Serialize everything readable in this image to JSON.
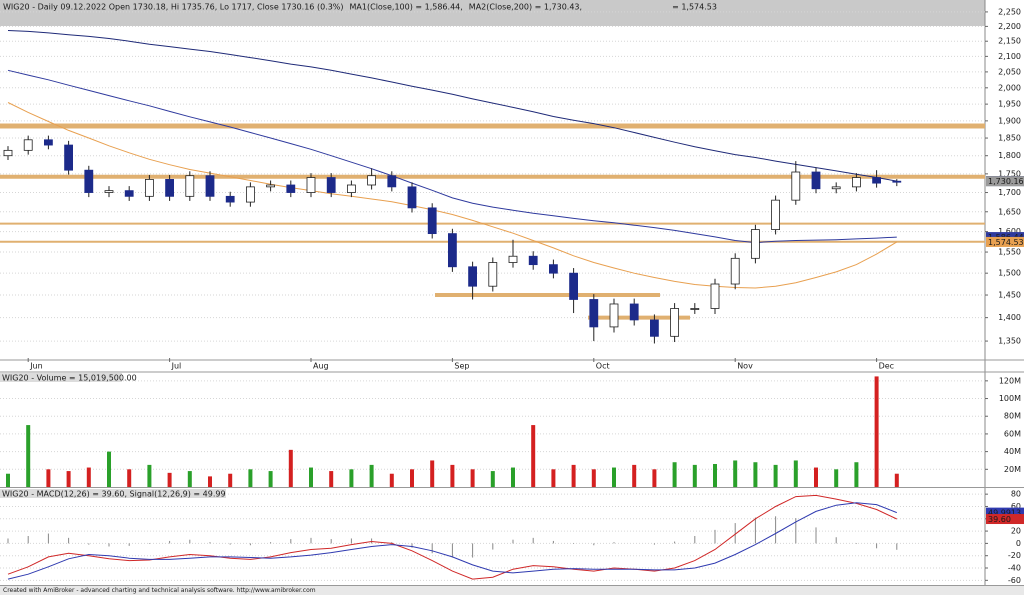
{
  "chart_data": [
    {
      "type": "candlestick",
      "title": "WIG20 - Daily 09.12.2022 Open 1730.18, Hi 1735.76, Lo 1717, Close 1730.16 (0.3%)",
      "log_scale": true,
      "categories": [
        null,
        "Jun",
        null,
        null,
        null,
        null,
        null,
        null,
        "Jul",
        null,
        null,
        null,
        null,
        null,
        null,
        "Aug",
        null,
        null,
        null,
        null,
        null,
        null,
        "Sep",
        null,
        null,
        null,
        null,
        null,
        null,
        "Oct",
        null,
        null,
        null,
        null,
        null,
        null,
        "Nov",
        null,
        null,
        null,
        null,
        null,
        null,
        "Dec",
        null
      ],
      "open": [
        1800,
        1815,
        1845,
        1830,
        1760,
        1700,
        1705,
        1690,
        1735,
        1690,
        1745,
        1690,
        1675,
        1715,
        1720,
        1700,
        1740,
        1700,
        1720,
        1745,
        1715,
        1660,
        1595,
        1515,
        1470,
        1525,
        1540,
        1520,
        1500,
        1440,
        1380,
        1430,
        1395,
        1360,
        1420,
        1420,
        1475,
        1535,
        1605,
        1680,
        1755,
        1710,
        1715,
        1740,
        1730.18
      ],
      "high": [
        1827,
        1857,
        1857,
        1842,
        1772,
        1717,
        1717,
        1747,
        1747,
        1757,
        1757,
        1702,
        1727,
        1732,
        1732,
        1752,
        1752,
        1732,
        1765,
        1757,
        1727,
        1672,
        1607,
        1527,
        1537,
        1580,
        1552,
        1532,
        1512,
        1452,
        1442,
        1442,
        1407,
        1432,
        1432,
        1487,
        1547,
        1617,
        1692,
        1785,
        1767,
        1727,
        1752,
        1760,
        1735.76
      ],
      "low": [
        1788,
        1803,
        1818,
        1748,
        1688,
        1688,
        1678,
        1678,
        1678,
        1678,
        1678,
        1663,
        1663,
        1703,
        1688,
        1688,
        1688,
        1688,
        1708,
        1703,
        1648,
        1583,
        1503,
        1440,
        1458,
        1513,
        1508,
        1488,
        1410,
        1350,
        1368,
        1383,
        1345,
        1348,
        1408,
        1408,
        1463,
        1523,
        1593,
        1668,
        1698,
        1698,
        1703,
        1713,
        1717
      ],
      "close": [
        1815,
        1845,
        1830,
        1760,
        1700,
        1705,
        1690,
        1735,
        1690,
        1745,
        1690,
        1675,
        1715,
        1720,
        1700,
        1740,
        1700,
        1720,
        1745,
        1715,
        1660,
        1595,
        1515,
        1470,
        1525,
        1540,
        1520,
        1500,
        1440,
        1380,
        1430,
        1395,
        1360,
        1420,
        1420,
        1475,
        1535,
        1605,
        1680,
        1755,
        1710,
        1715,
        1740,
        1725,
        1730.16
      ],
      "up_color": "#ffffff",
      "down_color": "#1c2a8a",
      "series": [
        {
          "name": "MA1(Close,100) = 1,586.44,",
          "color": "#2f3a9e",
          "values": [
            2055,
            2040,
            2025,
            2008,
            1992,
            1976,
            1960,
            1945,
            1928,
            1912,
            1897,
            1882,
            1866,
            1850,
            1834,
            1818,
            1800,
            1782,
            1764,
            1745,
            1725,
            1706,
            1686,
            1672,
            1662,
            1654,
            1646,
            1640,
            1633,
            1627,
            1622,
            1616,
            1610,
            1603,
            1595,
            1587,
            1578,
            1573,
            1576,
            1578,
            1579,
            1580,
            1582,
            1584,
            1586.44
          ]
        },
        {
          "name": "MA2(Close,200) = 1,730.43,",
          "color": "#1f2a78",
          "values": [
            2186,
            2183,
            2178,
            2172,
            2166,
            2159,
            2150,
            2140,
            2132,
            2124,
            2116,
            2106,
            2096,
            2086,
            2075,
            2066,
            2055,
            2043,
            2031,
            2018,
            2005,
            1993,
            1980,
            1966,
            1953,
            1940,
            1927,
            1913,
            1902,
            1892,
            1880,
            1866,
            1852,
            1838,
            1825,
            1814,
            1803,
            1795,
            1785,
            1776,
            1767,
            1758,
            1749,
            1740,
            1730.43
          ]
        },
        {
          "name": "= 1,574.53",
          "color": "#e8a050",
          "values": [
            1955,
            1925,
            1898,
            1872,
            1850,
            1828,
            1808,
            1790,
            1775,
            1762,
            1752,
            1742,
            1732,
            1722,
            1713,
            1705,
            1697,
            1690,
            1683,
            1676,
            1666,
            1655,
            1643,
            1628,
            1612,
            1596,
            1578,
            1560,
            1541,
            1525,
            1512,
            1500,
            1490,
            1481,
            1474,
            1470,
            1467,
            1466,
            1470,
            1478,
            1490,
            1503,
            1520,
            1545,
            1574.53
          ]
        }
      ],
      "levels": [
        1885,
        1742,
        1620,
        1575
      ],
      "short_levels": [
        1450,
        1400
      ],
      "level_color": "#e0b070",
      "ylim": [
        1315,
        2292
      ],
      "yticks": [
        {
          "value": 1350,
          "label": "1,350"
        },
        {
          "value": 1400,
          "label": "1,400"
        },
        {
          "value": 1450,
          "label": "1,450"
        },
        {
          "value": 1500,
          "label": "1,500"
        },
        {
          "value": 1550,
          "label": "1,550"
        },
        {
          "value": 1600,
          "label": "1,600"
        },
        {
          "value": 1650,
          "label": "1,650"
        },
        {
          "value": 1700,
          "label": "1,700"
        },
        {
          "value": 1750,
          "label": "1,750"
        },
        {
          "value": 1800,
          "label": "1,800"
        },
        {
          "value": 1850,
          "label": "1,850"
        },
        {
          "value": 1900,
          "label": "1,900"
        },
        {
          "value": 1950,
          "label": "1,950"
        },
        {
          "value": 2000,
          "label": "2,000"
        },
        {
          "value": 2050,
          "label": "2,050"
        },
        {
          "value": 2100,
          "label": "2,100"
        },
        {
          "value": 2150,
          "label": "2,150"
        },
        {
          "value": 2200,
          "label": "2,200"
        },
        {
          "value": 2250,
          "label": "2,250"
        }
      ],
      "tags": [
        {
          "value": 1730.43,
          "label": "1,730.43",
          "color": "#1f2a78"
        },
        {
          "value": 1730.16,
          "label": "1,730.16",
          "color": "#9a9a9a"
        },
        {
          "value": 1586.44,
          "label": "1,586.44",
          "color": "#2f3a9e"
        },
        {
          "value": 1574.53,
          "label": "1,574.53",
          "color": "#e8a050"
        }
      ],
      "grid": true
    },
    {
      "type": "bar",
      "title": "WIG20 - Volume = 15,019,500.00",
      "values": [
        15000000,
        70000000,
        20000000,
        18000000,
        22000000,
        40000000,
        20000000,
        25000000,
        16000000,
        18000000,
        12000000,
        15000000,
        20000000,
        18000000,
        42000000,
        22000000,
        18000000,
        20000000,
        25000000,
        15000000,
        20000000,
        30000000,
        25000000,
        20000000,
        18000000,
        22000000,
        70000000,
        20000000,
        25000000,
        20000000,
        22000000,
        25000000,
        20000000,
        28000000,
        25000000,
        26000000,
        30000000,
        28000000,
        25000000,
        30000000,
        22000000,
        20000000,
        28000000,
        125000000,
        15019500
      ],
      "up_color": "#2aa02a",
      "down_color": "#d42020",
      "ylim": [
        0,
        130000000
      ],
      "yticks": [
        {
          "value": 20000000,
          "label": "20M"
        },
        {
          "value": 40000000,
          "label": "40M"
        },
        {
          "value": 60000000,
          "label": "60M"
        },
        {
          "value": 80000000,
          "label": "80M"
        },
        {
          "value": 100000000,
          "label": "100M"
        },
        {
          "value": 120000000,
          "label": "120M"
        }
      ],
      "grid": true
    },
    {
      "type": "line",
      "title": "WIG20 - MACD(12,26) = 39.60, Signal(12,26,9) = 49.99",
      "series": [
        {
          "color": "#d02828",
          "values": [
            -50,
            -38,
            -22,
            -16,
            -20,
            -25,
            -28,
            -27,
            -22,
            -18,
            -20,
            -24,
            -26,
            -22,
            -15,
            -10,
            -8,
            -2,
            3,
            0,
            -12,
            -28,
            -45,
            -58,
            -55,
            -42,
            -36,
            -38,
            -42,
            -45,
            -40,
            -42,
            -45,
            -40,
            -28,
            -10,
            15,
            40,
            60,
            76,
            78,
            72,
            65,
            55,
            39.6
          ]
        },
        {
          "color": "#2f3ab0",
          "values": [
            -58,
            -50,
            -38,
            -25,
            -18,
            -20,
            -24,
            -26,
            -26,
            -24,
            -22,
            -22,
            -23,
            -24,
            -22,
            -19,
            -15,
            -10,
            -5,
            -2,
            -5,
            -12,
            -22,
            -35,
            -45,
            -48,
            -45,
            -42,
            -41,
            -42,
            -42,
            -42,
            -43,
            -43,
            -40,
            -32,
            -18,
            -2,
            16,
            35,
            52,
            62,
            66,
            63,
            49.9913
          ]
        }
      ],
      "histogram": [
        8,
        12,
        16,
        9,
        -2,
        -5,
        -4,
        -1,
        4,
        6,
        2,
        -2,
        -3,
        2,
        7,
        9,
        7,
        8,
        8,
        2,
        -7,
        -16,
        -23,
        -23,
        -10,
        6,
        9,
        4,
        -1,
        -3,
        2,
        0,
        -2,
        3,
        12,
        22,
        33,
        42,
        44,
        41,
        26,
        10,
        -1,
        -8,
        -10.3913
      ],
      "histogram_color": "#888888",
      "ylim": [
        -67.6,
        90
      ],
      "yticks": [
        80,
        60,
        40,
        20,
        0,
        -20,
        -40,
        -60
      ],
      "tags": [
        {
          "value": 49.9913,
          "label": "49.9913",
          "color": "#2f3ab0"
        },
        {
          "value": 39.6,
          "label": "39.60",
          "color": "#d02828"
        }
      ],
      "grid": true
    }
  ],
  "footer": "Created with AmiBroker - advanced charting and technical analysis software. http://www.amibroker.com"
}
